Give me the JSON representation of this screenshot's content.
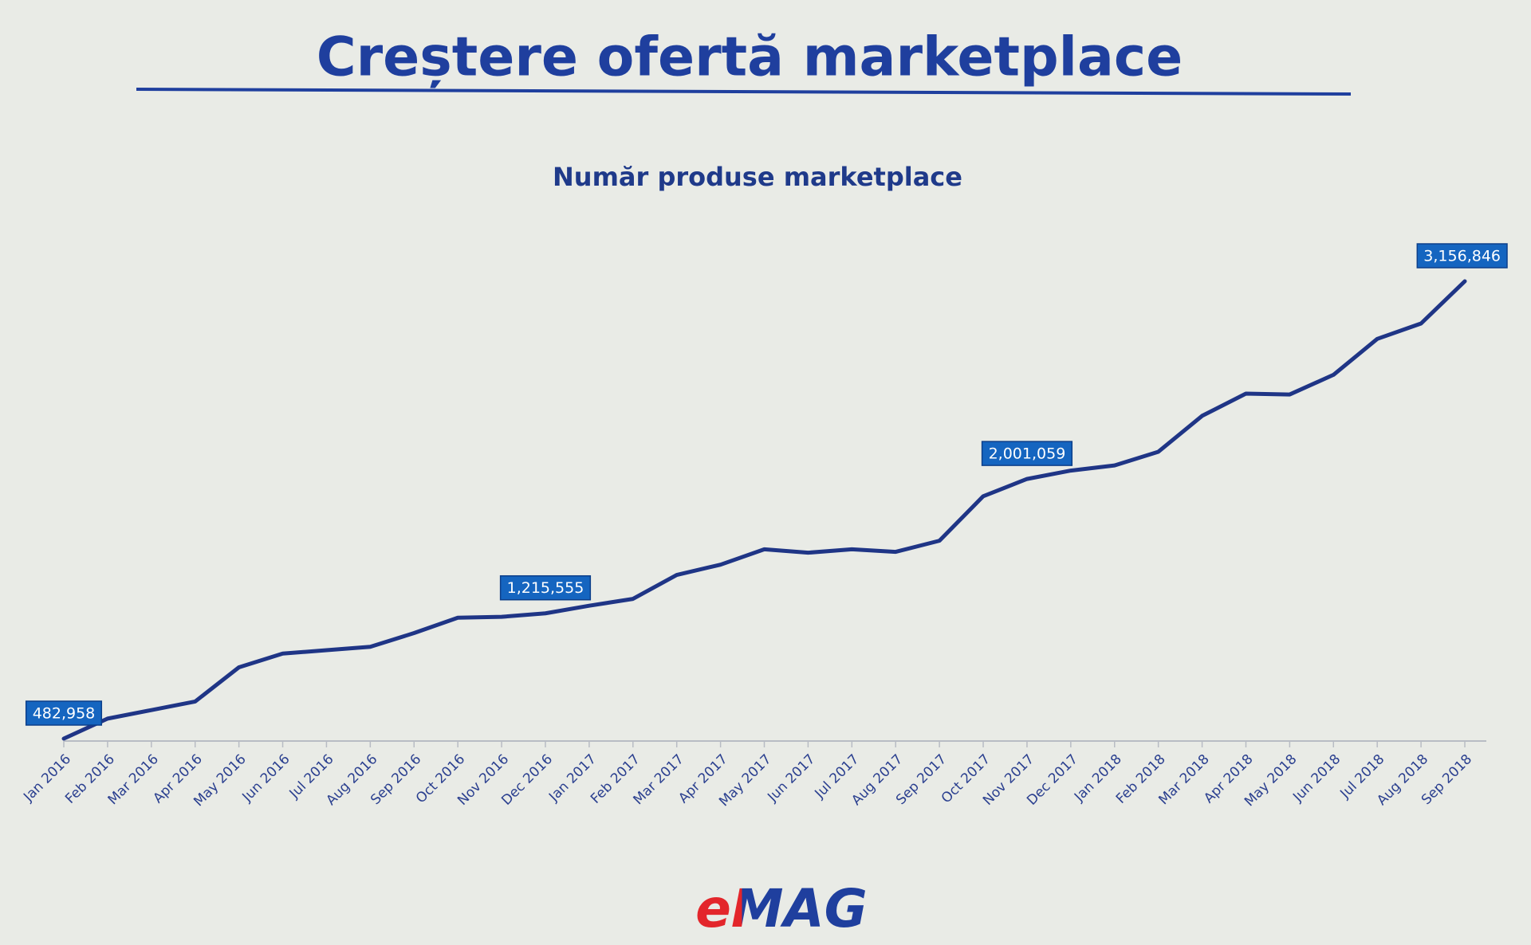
{
  "chart_data": {
    "type": "line",
    "title": "Creștere ofertă marketplace",
    "subtitle": "Număr produse marketplace",
    "logo": "eMAG",
    "categories": [
      "Jan 2016",
      "Feb 2016",
      "Mar 2016",
      "Apr 2016",
      "May 2016",
      "Jun 2016",
      "Jul 2016",
      "Aug 2016",
      "Sep 2016",
      "Oct 2016",
      "Nov 2016",
      "Dec 2016",
      "Jan 2017",
      "Feb 2017",
      "Mar 2017",
      "Apr 2017",
      "May 2017",
      "Jun 2017",
      "Jul 2017",
      "Aug 2017",
      "Sep 2017",
      "Oct 2017",
      "Nov 2017",
      "Dec 2017",
      "Jan 2018",
      "Feb 2018",
      "Mar 2018",
      "Apr 2018",
      "May 2018",
      "Jun 2018",
      "Jul 2018",
      "Aug 2018",
      "Sep 2018"
    ],
    "series": [
      {
        "name": "Număr produse marketplace",
        "color": "#1f3586",
        "values": [
          482958,
          600000,
          650000,
          700000,
          900000,
          980000,
          1000000,
          1020000,
          1100000,
          1190000,
          1195000,
          1215555,
          1260000,
          1300000,
          1440000,
          1500000,
          1590000,
          1570000,
          1590000,
          1575000,
          1640000,
          1900000,
          2001059,
          2050000,
          2080000,
          2160000,
          2370000,
          2500000,
          2495000,
          2610000,
          2820000,
          2910000,
          3156846
        ],
        "value_labels": [
          "482,958",
          null,
          null,
          null,
          null,
          null,
          null,
          null,
          null,
          null,
          null,
          "1,215,555",
          null,
          null,
          null,
          null,
          null,
          null,
          null,
          null,
          null,
          null,
          "2,001,059",
          null,
          null,
          null,
          null,
          null,
          null,
          null,
          null,
          null,
          "3,156,846"
        ]
      }
    ],
    "label_color": "#1565c0"
  }
}
